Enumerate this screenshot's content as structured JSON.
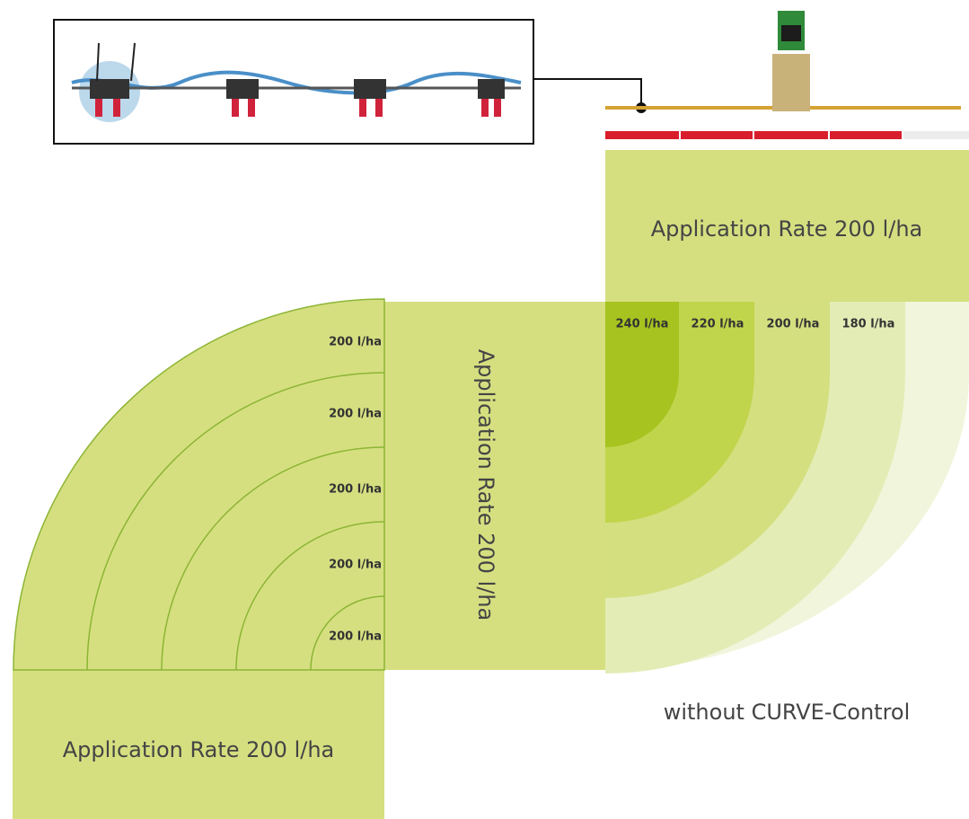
{
  "top_block": {
    "label": "Application Rate 200 l/ha"
  },
  "center_block": {
    "label": "Application Rate 200 l/ha"
  },
  "bottom_block": {
    "label": "Application Rate 200 l/ha"
  },
  "left_curve": {
    "rates": [
      "200 l/ha",
      "200 l/ha",
      "200 l/ha",
      "200 l/ha",
      "200 l/ha"
    ]
  },
  "right_curve": {
    "rates": [
      "240 l/ha",
      "220 l/ha",
      "200 l/ha",
      "180 l/ha"
    ]
  },
  "caption": "without CURVE-Control"
}
